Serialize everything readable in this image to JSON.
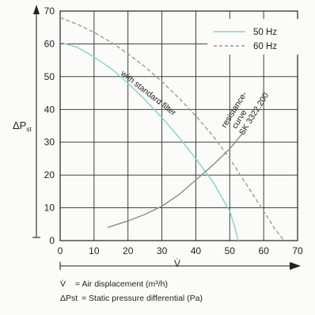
{
  "chart_data": {
    "type": "line",
    "xlim": [
      0,
      70
    ],
    "ylim": [
      0,
      70
    ],
    "x_ticks": [
      "0",
      "10",
      "20",
      "30",
      "40",
      "50",
      "60",
      "70"
    ],
    "y_ticks": [
      "0",
      "10",
      "20",
      "30",
      "40",
      "50",
      "60",
      "70"
    ],
    "xlabel": "V̇",
    "ylabel": "ΔPst",
    "ylabel_main": "ΔP",
    "ylabel_sub": "st",
    "grid": true,
    "legend_position": "top-right",
    "series": [
      {
        "name": "50 Hz",
        "color": "#7fd6c8",
        "dash": "solid",
        "points": [
          [
            0,
            60.5
          ],
          [
            5,
            59
          ],
          [
            10,
            56
          ],
          [
            15,
            52.5
          ],
          [
            20,
            48
          ],
          [
            25,
            43
          ],
          [
            30,
            37.5
          ],
          [
            35,
            31.5
          ],
          [
            40,
            25
          ],
          [
            45,
            18
          ],
          [
            50,
            9
          ],
          [
            51.5,
            4
          ],
          [
            52.5,
            0
          ]
        ]
      },
      {
        "name": "60 Hz",
        "color": "#9a9a9a",
        "dash": "dashed",
        "points": [
          [
            0,
            68
          ],
          [
            5,
            66
          ],
          [
            10,
            63.5
          ],
          [
            15,
            60.5
          ],
          [
            20,
            57
          ],
          [
            25,
            53
          ],
          [
            30,
            48.5
          ],
          [
            35,
            43.5
          ],
          [
            40,
            38
          ],
          [
            45,
            32
          ],
          [
            50,
            25
          ],
          [
            55,
            17
          ],
          [
            60,
            9
          ],
          [
            63,
            4
          ],
          [
            66,
            0
          ]
        ]
      },
      {
        "name": "",
        "color": "#8a8a8a",
        "dash": "solid",
        "points": [
          [
            14,
            4
          ],
          [
            20,
            6
          ],
          [
            25,
            8
          ],
          [
            30,
            10.5
          ],
          [
            35,
            14
          ],
          [
            40,
            18.5
          ],
          [
            45,
            23
          ],
          [
            50,
            28
          ],
          [
            54,
            33
          ]
        ]
      }
    ],
    "annotations": {
      "standard_filter": "with standard filter",
      "resistance_line1": "resistance-",
      "resistance_line2": "curve",
      "resistance_line3": "SK 3322.200"
    }
  },
  "caption": {
    "line1_symbol": "V̇",
    "line1_text": "= Air displacement (m³/h)",
    "line2_symbol": "ΔPst",
    "line2_text": "= Static pressure differential (Pa)"
  }
}
